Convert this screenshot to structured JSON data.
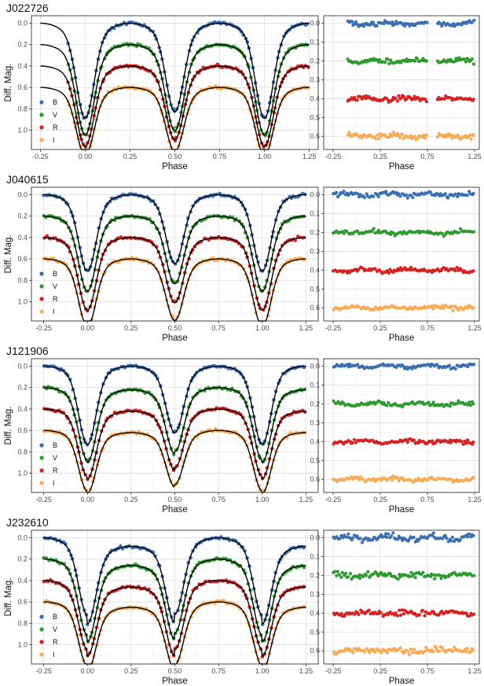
{
  "figure": {
    "xlabel": "Phase",
    "ylabel": "Diff. Mag.",
    "bands": [
      "B",
      "V",
      "R",
      "I"
    ],
    "band_colors": {
      "B": "#3a6fb0",
      "V": "#2f9a2f",
      "R": "#d62222",
      "I": "#f9aa55"
    },
    "model_color": "#000000"
  },
  "chart_data": [
    {
      "type": "scatter",
      "panel": "light-curve",
      "title": "J022726",
      "xlabel": "Phase",
      "ylabel": "Diff. Mag.",
      "xlim": [
        -0.3,
        1.3
      ],
      "ylim": [
        1.18,
        -0.07
      ],
      "y_reversed": true,
      "x_ticks": [
        "-0.25",
        "0.00",
        "0.25",
        "0.50",
        "0.75",
        "1.00",
        "1.25"
      ],
      "y_ticks": [
        "0.0",
        "0.2",
        "0.4",
        "0.6",
        "0.8",
        "1.0"
      ],
      "x_range_observed": [
        -0.1,
        1.25
      ],
      "legend": [
        "B",
        "V",
        "R",
        "I"
      ],
      "legend_position": "bottom-left",
      "series": [
        {
          "name": "B",
          "offset": 0.0,
          "depth_primary": 0.78,
          "depth_secondary": 0.72,
          "max_I": 0.0,
          "max_II": 0.0
        },
        {
          "name": "V",
          "offset": 0.2,
          "depth_primary": 0.74,
          "depth_secondary": 0.7,
          "max_I": 0.2,
          "max_II": 0.2
        },
        {
          "name": "R",
          "offset": 0.4,
          "depth_primary": 0.66,
          "depth_secondary": 0.6,
          "max_I": 0.4,
          "max_II": 0.4
        },
        {
          "name": "I",
          "offset": 0.6,
          "depth_primary": 0.56,
          "depth_secondary": 0.52,
          "max_I": 0.6,
          "max_II": 0.6
        }
      ]
    },
    {
      "type": "scatter",
      "panel": "residuals",
      "title": "",
      "xlabel": "Phase",
      "ylabel": "",
      "xlim": [
        -0.35,
        1.3
      ],
      "ylim": [
        0.67,
        -0.04
      ],
      "y_reversed": true,
      "x_ticks": [
        "-0.25",
        "0.25",
        "0.75",
        "1.25"
      ],
      "y_ticks": [
        "0.0",
        "0.1",
        "0.2",
        "0.3",
        "0.4",
        "0.5",
        "0.6"
      ],
      "x_range_observed": [
        -0.1,
        1.25
      ],
      "gap": [
        0.75,
        0.85
      ],
      "series": [
        {
          "name": "B",
          "level": 0.0,
          "scatter": 0.012
        },
        {
          "name": "V",
          "level": 0.2,
          "scatter": 0.012
        },
        {
          "name": "R",
          "level": 0.4,
          "scatter": 0.012
        },
        {
          "name": "I",
          "level": 0.6,
          "scatter": 0.012
        }
      ]
    },
    {
      "type": "scatter",
      "panel": "light-curve",
      "title": "J040615",
      "xlabel": "Phase",
      "ylabel": "Diff. Mag.",
      "xlim": [
        -0.32,
        1.32
      ],
      "ylim": [
        1.18,
        -0.07
      ],
      "y_reversed": true,
      "x_ticks": [
        "-0.25",
        "0.00",
        "0.25",
        "0.50",
        "0.75",
        "1.00",
        "1.25"
      ],
      "y_ticks": [
        "0.0",
        "0.2",
        "0.4",
        "0.6",
        "0.8",
        "1.0"
      ],
      "x_range_observed": [
        -0.25,
        1.25
      ],
      "legend": [
        "B",
        "V",
        "R",
        "I"
      ],
      "legend_position": "bottom-left",
      "series": [
        {
          "name": "B",
          "offset": 0.0,
          "depth_primary": 0.63,
          "depth_secondary": 0.56,
          "max_I": 0.0,
          "max_II": 0.0
        },
        {
          "name": "V",
          "offset": 0.2,
          "depth_primary": 0.62,
          "depth_secondary": 0.55,
          "max_I": 0.2,
          "max_II": 0.2
        },
        {
          "name": "R",
          "offset": 0.4,
          "depth_primary": 0.6,
          "depth_secondary": 0.53,
          "max_I": 0.4,
          "max_II": 0.4
        },
        {
          "name": "I",
          "offset": 0.6,
          "depth_primary": 0.56,
          "depth_secondary": 0.5,
          "max_I": 0.6,
          "max_II": 0.6
        }
      ]
    },
    {
      "type": "scatter",
      "panel": "residuals",
      "title": "",
      "xlabel": "Phase",
      "ylabel": "",
      "xlim": [
        -0.35,
        1.3
      ],
      "ylim": [
        0.67,
        -0.04
      ],
      "y_reversed": true,
      "x_ticks": [
        "-0.25",
        "0.25",
        "0.75",
        "1.25"
      ],
      "y_ticks": [
        "0.0",
        "0.1",
        "0.2",
        "0.3",
        "0.4",
        "0.5",
        "0.6"
      ],
      "x_range_observed": [
        -0.25,
        1.25
      ],
      "series": [
        {
          "name": "B",
          "level": 0.0,
          "scatter": 0.012
        },
        {
          "name": "V",
          "level": 0.2,
          "scatter": 0.01
        },
        {
          "name": "R",
          "level": 0.4,
          "scatter": 0.01
        },
        {
          "name": "I",
          "level": 0.6,
          "scatter": 0.012
        }
      ]
    },
    {
      "type": "scatter",
      "panel": "light-curve",
      "title": "J121906",
      "xlabel": "Phase",
      "ylabel": "Diff. Mag.",
      "xlim": [
        -0.32,
        1.32
      ],
      "ylim": [
        1.18,
        -0.07
      ],
      "y_reversed": true,
      "x_ticks": [
        "-0.25",
        "0.00",
        "0.25",
        "0.50",
        "0.75",
        "1.00",
        "1.25"
      ],
      "y_ticks": [
        "0.0",
        "0.2",
        "0.4",
        "0.6",
        "0.8",
        "1.0"
      ],
      "x_range_observed": [
        -0.25,
        1.25
      ],
      "legend": [
        "B",
        "V",
        "R",
        "I"
      ],
      "legend_position": "bottom-left",
      "series": [
        {
          "name": "B",
          "offset": 0.0,
          "depth_primary": 0.65,
          "depth_secondary": 0.54,
          "max_I": 0.0,
          "max_II": 0.0
        },
        {
          "name": "V",
          "offset": 0.2,
          "depth_primary": 0.6,
          "depth_secondary": 0.52,
          "max_I": 0.22,
          "max_II": 0.2
        },
        {
          "name": "R",
          "offset": 0.4,
          "depth_primary": 0.56,
          "depth_secondary": 0.48,
          "max_I": 0.42,
          "max_II": 0.4
        },
        {
          "name": "I",
          "offset": 0.6,
          "depth_primary": 0.5,
          "depth_secondary": 0.44,
          "max_I": 0.62,
          "max_II": 0.6
        }
      ]
    },
    {
      "type": "scatter",
      "panel": "residuals",
      "title": "",
      "xlabel": "Phase",
      "ylabel": "",
      "xlim": [
        -0.35,
        1.3
      ],
      "ylim": [
        0.67,
        -0.04
      ],
      "y_reversed": true,
      "x_ticks": [
        "-0.25",
        "0.25",
        "0.75",
        "1.25"
      ],
      "y_ticks": [
        "0.0",
        "0.1",
        "0.2",
        "0.3",
        "0.4",
        "0.5",
        "0.6"
      ],
      "x_range_observed": [
        -0.25,
        1.25
      ],
      "series": [
        {
          "name": "B",
          "level": 0.0,
          "scatter": 0.01
        },
        {
          "name": "V",
          "level": 0.2,
          "scatter": 0.01
        },
        {
          "name": "R",
          "level": 0.4,
          "scatter": 0.01
        },
        {
          "name": "I",
          "level": 0.6,
          "scatter": 0.01
        }
      ]
    },
    {
      "type": "scatter",
      "panel": "light-curve",
      "title": "J232610",
      "xlabel": "Phase",
      "ylabel": "Diff. Mag.",
      "xlim": [
        -0.32,
        1.32
      ],
      "ylim": [
        1.18,
        -0.07
      ],
      "y_reversed": true,
      "x_ticks": [
        "-0.25",
        "0.00",
        "0.25",
        "0.50",
        "0.75",
        "1.00",
        "1.25"
      ],
      "y_ticks": [
        "0.0",
        "0.2",
        "0.4",
        "0.6",
        "0.8",
        "1.0"
      ],
      "x_range_observed": [
        -0.25,
        1.25
      ],
      "legend": [
        "B",
        "V",
        "R",
        "I"
      ],
      "legend_position": "bottom-left",
      "series": [
        {
          "name": "B",
          "offset": 0.0,
          "depth_primary": 0.63,
          "depth_secondary": 0.62,
          "max_I": 0.08,
          "max_II": 0.0
        },
        {
          "name": "V",
          "offset": 0.2,
          "depth_primary": 0.62,
          "depth_secondary": 0.6,
          "max_I": 0.26,
          "max_II": 0.2
        },
        {
          "name": "R",
          "offset": 0.4,
          "depth_primary": 0.56,
          "depth_secondary": 0.56,
          "max_I": 0.46,
          "max_II": 0.4
        },
        {
          "name": "I",
          "offset": 0.6,
          "depth_primary": 0.52,
          "depth_secondary": 0.51,
          "max_I": 0.65,
          "max_II": 0.6
        }
      ]
    },
    {
      "type": "scatter",
      "panel": "residuals",
      "title": "",
      "xlabel": "Phase",
      "ylabel": "",
      "xlim": [
        -0.35,
        1.3
      ],
      "ylim": [
        0.67,
        -0.04
      ],
      "y_reversed": true,
      "x_ticks": [
        "-0.25",
        "0.25",
        "0.75",
        "1.25"
      ],
      "y_ticks": [
        "0.0",
        "0.1",
        "0.2",
        "0.3",
        "0.4",
        "0.5",
        "0.6"
      ],
      "x_range_observed": [
        -0.25,
        1.25
      ],
      "series": [
        {
          "name": "B",
          "level": 0.0,
          "scatter": 0.018
        },
        {
          "name": "V",
          "level": 0.2,
          "scatter": 0.015
        },
        {
          "name": "R",
          "level": 0.4,
          "scatter": 0.015
        },
        {
          "name": "I",
          "level": 0.6,
          "scatter": 0.015
        }
      ]
    }
  ]
}
